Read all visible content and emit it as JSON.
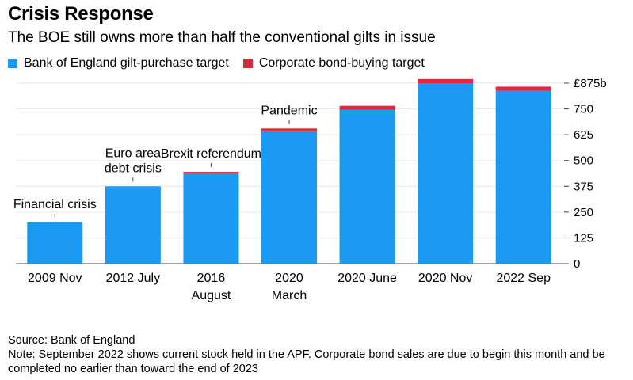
{
  "header": {
    "title": "Crisis Response",
    "subtitle": "The BOE still owns more than half the conventional gilts in issue"
  },
  "legend": [
    {
      "label": "Bank of England gilt-purchase target",
      "color": "#1a9af2"
    },
    {
      "label": "Corporate bond-buying target",
      "color": "#e8233f"
    }
  ],
  "chart_data": {
    "type": "bar",
    "stacked": true,
    "title": "Crisis Response",
    "categories": [
      [
        "2009 Nov"
      ],
      [
        "2012 July"
      ],
      [
        "2016",
        "August"
      ],
      [
        "2020",
        "March"
      ],
      [
        "2020 June"
      ],
      [
        "2020 Nov"
      ],
      [
        "2022 Sep"
      ]
    ],
    "series": [
      {
        "name": "Bank of England gilt-purchase target",
        "color": "#1a9af2",
        "values": [
          200,
          375,
          435,
          645,
          745,
          875,
          838
        ]
      },
      {
        "name": "Corporate bond-buying target",
        "color": "#e8233f",
        "values": [
          0,
          0,
          10,
          10,
          20,
          20,
          20
        ]
      }
    ],
    "annotations": [
      {
        "index": 0,
        "lines": [
          "Financial crisis"
        ]
      },
      {
        "index": 1,
        "lines": [
          "Euro area",
          "debt crisis"
        ]
      },
      {
        "index": 2,
        "lines": [
          "Brexit referendum"
        ]
      },
      {
        "index": 3,
        "lines": [
          "Pandemic"
        ]
      }
    ],
    "yticks": [
      0,
      125,
      250,
      375,
      500,
      625,
      750
    ],
    "ytop_label": "£875b",
    "ylim": [
      0,
      875
    ],
    "xlabel": "",
    "ylabel": ""
  },
  "footer": {
    "source": "Source: Bank of England",
    "note": "Note: September 2022 shows current stock held in the APF. Corporate bond sales are due to begin this month and be completed no earlier than toward the end of 2023"
  }
}
